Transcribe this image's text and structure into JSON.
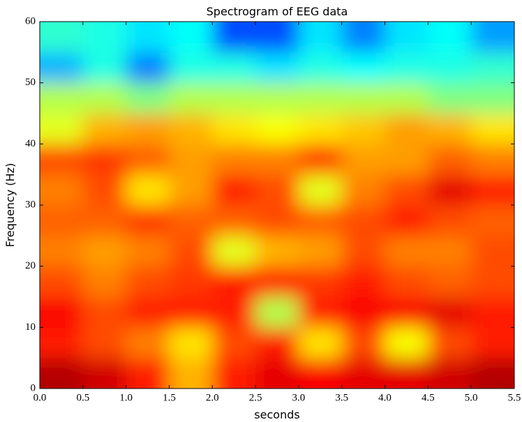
{
  "chart_data": {
    "type": "heatmap",
    "colormap": "jet",
    "title": "Spectrogram of EEG data",
    "xlabel": "seconds",
    "ylabel": "Frequency (Hz)",
    "xbins": [
      0,
      0.5,
      1,
      1.5,
      2,
      2.5,
      3,
      3.5,
      4,
      4.5,
      5,
      5.5
    ],
    "ybins": [
      0,
      5,
      10,
      15,
      20,
      25,
      30,
      35,
      40,
      45,
      50,
      55,
      60
    ],
    "z": [
      [
        0.95,
        0.92,
        0.85,
        0.7,
        0.85,
        0.9,
        0.88,
        0.9,
        0.9,
        0.92,
        0.95
      ],
      [
        0.85,
        0.8,
        0.75,
        0.65,
        0.8,
        0.85,
        0.65,
        0.8,
        0.62,
        0.8,
        0.85
      ],
      [
        0.88,
        0.8,
        0.85,
        0.85,
        0.85,
        0.55,
        0.85,
        0.88,
        0.88,
        0.9,
        0.85
      ],
      [
        0.8,
        0.75,
        0.8,
        0.82,
        0.85,
        0.85,
        0.82,
        0.85,
        0.8,
        0.78,
        0.8
      ],
      [
        0.75,
        0.72,
        0.75,
        0.8,
        0.6,
        0.7,
        0.72,
        0.8,
        0.75,
        0.75,
        0.8
      ],
      [
        0.78,
        0.78,
        0.82,
        0.78,
        0.78,
        0.8,
        0.78,
        0.8,
        0.85,
        0.8,
        0.78
      ],
      [
        0.75,
        0.8,
        0.65,
        0.72,
        0.85,
        0.8,
        0.6,
        0.75,
        0.8,
        0.9,
        0.85
      ],
      [
        0.8,
        0.82,
        0.78,
        0.72,
        0.75,
        0.75,
        0.82,
        0.72,
        0.72,
        0.78,
        0.75
      ],
      [
        0.6,
        0.7,
        0.72,
        0.7,
        0.65,
        0.62,
        0.65,
        0.68,
        0.72,
        0.7,
        0.65
      ],
      [
        0.55,
        0.55,
        0.5,
        0.55,
        0.55,
        0.55,
        0.55,
        0.55,
        0.55,
        0.5,
        0.5
      ],
      [
        0.3,
        0.4,
        0.25,
        0.4,
        0.4,
        0.35,
        0.4,
        0.38,
        0.4,
        0.4,
        0.42
      ],
      [
        0.42,
        0.4,
        0.35,
        0.38,
        0.2,
        0.2,
        0.35,
        0.25,
        0.35,
        0.38,
        0.28
      ]
    ],
    "xlim": [
      0,
      5.5
    ],
    "xticks": [
      {
        "value": 0,
        "label": "0.0"
      },
      0.5,
      {
        "value": 1,
        "label": "1.0"
      },
      1.5,
      {
        "value": 2,
        "label": "2.0"
      },
      2.5,
      {
        "value": 3,
        "label": "3.0"
      },
      3.5,
      {
        "value": 4,
        "label": "4.0"
      },
      4.5,
      {
        "value": 5,
        "label": "5.0"
      },
      5.5
    ],
    "ylim": [
      0,
      60
    ],
    "yticks": [
      0,
      10,
      20,
      30,
      40,
      50,
      60
    ]
  }
}
